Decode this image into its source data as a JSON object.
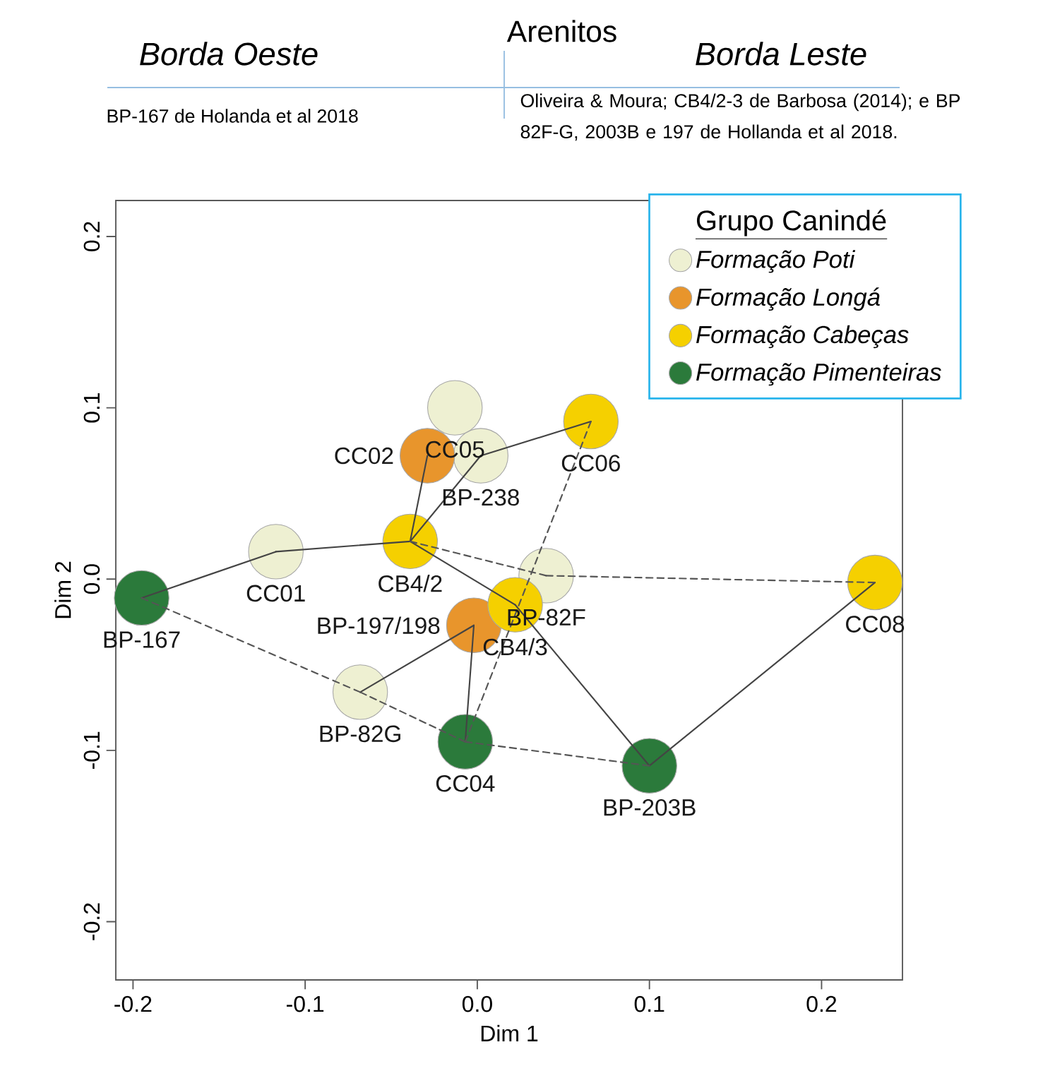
{
  "chart_data": {
    "type": "scatter",
    "title": "Arenitos",
    "xlabel": "Dim 1",
    "ylabel": "Dim 2",
    "legend_title": "Grupo Canindé",
    "legend": "top right",
    "xlim": [
      -0.21,
      0.247
    ],
    "ylim": [
      -0.234,
      0.221
    ],
    "xticks": [
      -0.2,
      -0.1,
      {
        "value": 0,
        "label": "0.0"
      },
      0.1,
      0.2
    ],
    "yticks": [
      -0.2,
      -0.1,
      {
        "value": 0,
        "label": "0.0"
      },
      0.1,
      0.2
    ],
    "series": [
      {
        "name": "Formação Poti",
        "color": "#eef0d2",
        "x": [
          -0.117,
          -0.013,
          0.002,
          0.04,
          -0.068
        ],
        "values": [
          0.016,
          0.1,
          0.072,
          0.002,
          -0.066
        ]
      },
      {
        "name": "Formação Longá",
        "color": "#e8952c",
        "x": [
          -0.029,
          -0.002
        ],
        "values": [
          0.072,
          -0.027
        ]
      },
      {
        "name": "Formação Cabeças",
        "color": "#f5d000",
        "x": [
          -0.039,
          0.066,
          0.022,
          0.231
        ],
        "values": [
          0.022,
          0.092,
          -0.015,
          -0.002
        ]
      },
      {
        "name": "Formação Pimenteiras",
        "color": "#2b7a3b",
        "x": [
          -0.195,
          -0.007,
          0.1
        ],
        "values": [
          -0.011,
          -0.095,
          -0.109
        ]
      },
      {
        "type": "line",
        "marker": "none",
        "line_style": "solid",
        "color": "#444444",
        "x": [
          -0.195,
          -0.117
        ],
        "values": [
          -0.011,
          0.016
        ]
      },
      {
        "type": "line",
        "marker": "none",
        "line_style": "solid",
        "color": "#444444",
        "x": [
          -0.117,
          -0.039
        ],
        "values": [
          0.016,
          0.022
        ]
      },
      {
        "type": "line",
        "marker": "none",
        "line_style": "solid",
        "color": "#444444",
        "x": [
          -0.039,
          -0.029
        ],
        "values": [
          0.022,
          0.072
        ]
      },
      {
        "type": "line",
        "marker": "none",
        "line_style": "solid",
        "color": "#444444",
        "x": [
          -0.039,
          0.002
        ],
        "values": [
          0.022,
          0.072
        ]
      },
      {
        "type": "line",
        "marker": "none",
        "line_style": "solid",
        "color": "#444444",
        "x": [
          0.002,
          0.066
        ],
        "values": [
          0.072,
          0.092
        ]
      },
      {
        "type": "line",
        "marker": "none",
        "line_style": "solid",
        "color": "#444444",
        "x": [
          -0.039,
          0.022
        ],
        "values": [
          0.022,
          -0.015
        ]
      },
      {
        "type": "line",
        "marker": "none",
        "line_style": "solid",
        "color": "#444444",
        "x": [
          0.022,
          0.1
        ],
        "values": [
          -0.015,
          -0.109
        ]
      },
      {
        "type": "line",
        "marker": "none",
        "line_style": "solid",
        "color": "#444444",
        "x": [
          0.1,
          0.231
        ],
        "values": [
          -0.109,
          -0.002
        ]
      },
      {
        "type": "line",
        "marker": "none",
        "line_style": "solid",
        "color": "#444444",
        "x": [
          -0.002,
          -0.068
        ],
        "values": [
          -0.027,
          -0.066
        ]
      },
      {
        "type": "line",
        "marker": "none",
        "line_style": "solid",
        "color": "#444444",
        "x": [
          -0.002,
          -0.007
        ],
        "values": [
          -0.027,
          -0.095
        ]
      },
      {
        "type": "line",
        "marker": "none",
        "line_style": "dashed",
        "color": "#555555",
        "x": [
          -0.195,
          -0.068
        ],
        "values": [
          -0.011,
          -0.066
        ]
      },
      {
        "type": "line",
        "marker": "none",
        "line_style": "dashed",
        "color": "#555555",
        "x": [
          -0.068,
          -0.007
        ],
        "values": [
          -0.066,
          -0.095
        ]
      },
      {
        "type": "line",
        "marker": "none",
        "line_style": "dashed",
        "color": "#555555",
        "x": [
          -0.007,
          0.1
        ],
        "values": [
          -0.095,
          -0.109
        ]
      },
      {
        "type": "line",
        "marker": "none",
        "line_style": "dashed",
        "color": "#555555",
        "x": [
          -0.007,
          0.066
        ],
        "values": [
          -0.095,
          0.092
        ]
      },
      {
        "type": "line",
        "marker": "none",
        "line_style": "dashed",
        "color": "#555555",
        "x": [
          -0.039,
          0.04
        ],
        "values": [
          0.022,
          0.002
        ]
      },
      {
        "type": "line",
        "marker": "none",
        "line_style": "dashed",
        "color": "#555555",
        "x": [
          0.04,
          0.231
        ],
        "values": [
          0.002,
          -0.002
        ]
      }
    ],
    "annotations": [
      "Borda Oeste",
      "Borda Leste",
      "BP-167 de Holanda et al 2018",
      "Oliveira & Moura; CB4/2-3 de Barbosa (2014); e BP 82F-G, 2003B e 197 de Hollanda et al 2018.",
      {
        "text": "BP-167",
        "x": -0.195,
        "y": -0.011
      },
      {
        "text": "CC01",
        "x": -0.117,
        "y": 0.016
      },
      {
        "text": "CB4/2",
        "x": -0.039,
        "y": 0.022
      },
      {
        "text": "CC05",
        "x": -0.013,
        "y": 0.1
      },
      {
        "text": "BP-238",
        "x": 0.002,
        "y": 0.072
      },
      {
        "text": "CC02",
        "x": -0.029,
        "y": 0.072
      },
      {
        "text": "CC06",
        "x": 0.066,
        "y": 0.092
      },
      {
        "text": "BP-82F",
        "x": 0.04,
        "y": 0.002
      },
      {
        "text": "CB4/3",
        "x": 0.022,
        "y": -0.015
      },
      {
        "text": "BP-197/198",
        "x": -0.002,
        "y": -0.027
      },
      {
        "text": "BP-82G",
        "x": -0.068,
        "y": -0.066
      },
      {
        "text": "CC04",
        "x": -0.007,
        "y": -0.095
      },
      {
        "text": "BP-203B",
        "x": 0.1,
        "y": -0.109
      },
      {
        "text": "CC08",
        "x": 0.231,
        "y": -0.002
      }
    ]
  }
}
